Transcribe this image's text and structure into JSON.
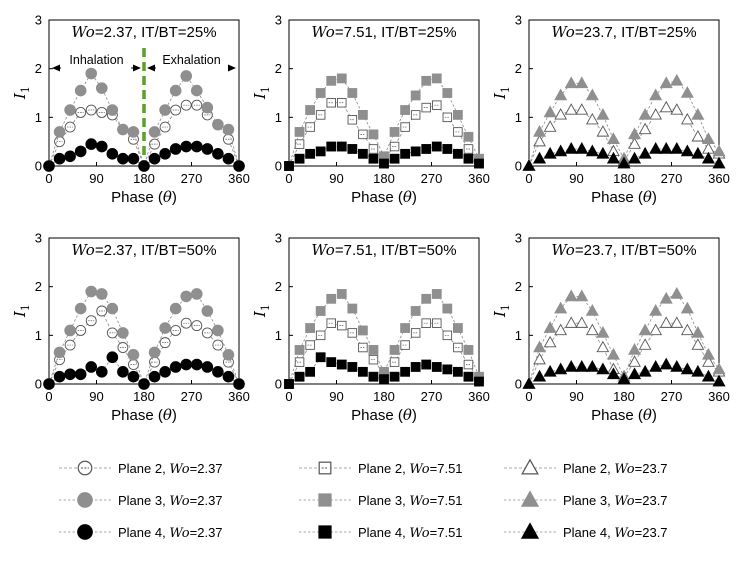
{
  "chart_data": {
    "type": "scatter",
    "xlabel": "Phase (θ)",
    "ylabel": "I1",
    "xticks": [
      0,
      90,
      180,
      270,
      360
    ],
    "yticks": [
      0,
      1,
      2,
      3
    ],
    "xlim": [
      0,
      360
    ],
    "ylim": [
      0,
      3
    ],
    "x": [
      0,
      20,
      40,
      60,
      80,
      100,
      120,
      140,
      160,
      180,
      200,
      220,
      240,
      260,
      280,
      300,
      320,
      340,
      360
    ],
    "panels": [
      {
        "title": "Wo=2.37, IT/BT=25%",
        "wo_label": "Wo",
        "rest_label": "=2.37, IT/BT=25%",
        "marker": "circle",
        "annotations": {
          "divider_x": 180,
          "inhalation": "Inhalation",
          "exhalation": "Exhalation"
        },
        "series": [
          {
            "name": "Plane 2, Wo=2.37",
            "values": [
              0,
              0.5,
              0.8,
              1.1,
              1.15,
              1.1,
              1.05,
              0.75,
              0.55,
              0,
              0.45,
              0.8,
              1.15,
              1.25,
              1.25,
              1.05,
              0.85,
              0.55,
              0
            ]
          },
          {
            "name": "Plane 3, Wo=2.37",
            "values": [
              0,
              0.7,
              1.15,
              1.55,
              1.9,
              1.6,
              1.15,
              0.75,
              0.7,
              0,
              0.7,
              1.15,
              1.55,
              1.85,
              1.55,
              1.2,
              0.85,
              0.75,
              0
            ]
          },
          {
            "name": "Plane 4, Wo=2.37",
            "values": [
              0,
              0.15,
              0.2,
              0.3,
              0.45,
              0.4,
              0.25,
              0.15,
              0.15,
              0,
              0.15,
              0.25,
              0.35,
              0.4,
              0.4,
              0.35,
              0.25,
              0.15,
              0
            ]
          }
        ]
      },
      {
        "title": "Wo=7.51, IT/BT=25%",
        "wo_label": "Wo",
        "rest_label": "=7.51, IT/BT=25%",
        "marker": "square",
        "series": [
          {
            "name": "Plane 2, Wo=7.51",
            "values": [
              0,
              0.45,
              0.8,
              1.05,
              1.3,
              1.3,
              0.95,
              0.65,
              0.35,
              0.15,
              0.4,
              0.8,
              1.05,
              1.2,
              1.25,
              1.0,
              0.7,
              0.35,
              0.1
            ]
          },
          {
            "name": "Plane 3, Wo=7.51",
            "values": [
              0,
              0.7,
              1.15,
              1.5,
              1.75,
              1.8,
              1.5,
              1.05,
              0.65,
              0.2,
              0.7,
              1.15,
              1.45,
              1.75,
              1.8,
              1.5,
              1.05,
              0.6,
              0.15
            ]
          },
          {
            "name": "Plane 4, Wo=7.51",
            "values": [
              0,
              0.15,
              0.25,
              0.3,
              0.4,
              0.4,
              0.35,
              0.25,
              0.15,
              0.05,
              0.15,
              0.25,
              0.3,
              0.35,
              0.4,
              0.35,
              0.25,
              0.15,
              0.05
            ]
          }
        ]
      },
      {
        "title": "Wo=23.7, IT/BT=25%",
        "wo_label": "Wo",
        "rest_label": "=23.7, IT/BT=25%",
        "marker": "triangle",
        "series": [
          {
            "name": "Plane 2, Wo=23.7",
            "values": [
              0,
              0.5,
              0.8,
              1.05,
              1.15,
              1.15,
              0.95,
              0.7,
              0.3,
              0.1,
              0.45,
              0.75,
              1.05,
              1.2,
              1.15,
              0.95,
              0.6,
              0.35,
              0.25
            ]
          },
          {
            "name": "Plane 3, Wo=23.7",
            "values": [
              0,
              0.7,
              1.1,
              1.45,
              1.7,
              1.7,
              1.45,
              1.05,
              0.55,
              0.15,
              0.65,
              1.05,
              1.45,
              1.7,
              1.75,
              1.5,
              1.05,
              0.55,
              0.3
            ]
          },
          {
            "name": "Plane 4, Wo=23.7",
            "values": [
              0,
              0.15,
              0.25,
              0.3,
              0.35,
              0.35,
              0.3,
              0.25,
              0.15,
              0.05,
              0.15,
              0.25,
              0.35,
              0.35,
              0.35,
              0.3,
              0.25,
              0.15,
              0.05
            ]
          }
        ]
      },
      {
        "title": "Wo=2.37, IT/BT=50%",
        "wo_label": "Wo",
        "rest_label": "=2.37, IT/BT=50%",
        "marker": "circle",
        "series": [
          {
            "name": "Plane 2, Wo=2.37",
            "values": [
              0,
              0.5,
              0.8,
              1.1,
              1.3,
              1.5,
              1.05,
              0.75,
              0.4,
              0,
              0.45,
              0.85,
              1.1,
              1.25,
              1.2,
              1.05,
              0.8,
              0.45,
              0
            ]
          },
          {
            "name": "Plane 3, Wo=2.37",
            "values": [
              0,
              0.65,
              1.1,
              1.55,
              1.9,
              1.85,
              1.55,
              1.05,
              0.6,
              0,
              0.65,
              1.15,
              1.55,
              1.8,
              1.85,
              1.5,
              1.1,
              0.6,
              0
            ]
          },
          {
            "name": "Plane 4, Wo=2.37",
            "values": [
              0,
              0.15,
              0.2,
              0.2,
              0.35,
              0.25,
              0.55,
              0.25,
              0.15,
              0,
              0.15,
              0.25,
              0.35,
              0.4,
              0.4,
              0.35,
              0.25,
              0.15,
              0
            ]
          }
        ]
      },
      {
        "title": "Wo=7.51, IT/BT=50%",
        "wo_label": "Wo",
        "rest_label": "=7.51, IT/BT=50%",
        "marker": "square",
        "series": [
          {
            "name": "Plane 2, Wo=7.51",
            "values": [
              0,
              0.45,
              0.8,
              1.0,
              1.25,
              1.2,
              1.05,
              0.75,
              0.5,
              0.2,
              0.45,
              0.8,
              1.05,
              1.25,
              1.25,
              1.0,
              0.75,
              0.4,
              0.1
            ]
          },
          {
            "name": "Plane 3, Wo=7.51",
            "values": [
              0,
              0.7,
              1.15,
              1.5,
              1.75,
              1.85,
              1.55,
              1.1,
              0.7,
              0.25,
              0.7,
              1.15,
              1.5,
              1.75,
              1.85,
              1.55,
              1.15,
              0.7,
              0.15
            ]
          },
          {
            "name": "Plane 4, Wo=7.51",
            "values": [
              0,
              0.15,
              0.25,
              0.55,
              0.45,
              0.4,
              0.35,
              0.25,
              0.15,
              0.1,
              0.15,
              0.25,
              0.35,
              0.4,
              0.35,
              0.3,
              0.25,
              0.15,
              0.05
            ]
          }
        ]
      },
      {
        "title": "Wo=23.7, IT/BT=50%",
        "wo_label": "Wo",
        "rest_label": "=23.7, IT/BT=50%",
        "marker": "triangle",
        "series": [
          {
            "name": "Plane 2, Wo=23.7",
            "values": [
              0,
              0.5,
              0.85,
              1.1,
              1.25,
              1.25,
              1.1,
              0.75,
              0.3,
              0.15,
              0.45,
              0.8,
              1.1,
              1.25,
              1.25,
              1.1,
              0.8,
              0.45,
              0.25
            ]
          },
          {
            "name": "Plane 3, Wo=23.7",
            "values": [
              0,
              0.75,
              1.15,
              1.55,
              1.8,
              1.8,
              1.5,
              1.05,
              0.6,
              0.15,
              0.7,
              1.1,
              1.5,
              1.75,
              1.85,
              1.55,
              1.05,
              0.6,
              0.3
            ]
          },
          {
            "name": "Plane 4, Wo=23.7",
            "values": [
              0,
              0.15,
              0.25,
              0.3,
              0.35,
              0.35,
              0.35,
              0.3,
              0.2,
              0.1,
              0.2,
              0.25,
              0.35,
              0.4,
              0.35,
              0.3,
              0.25,
              0.15,
              0.05
            ]
          }
        ]
      }
    ]
  },
  "legend": [
    [
      {
        "marker": "circle",
        "style": "open",
        "plane": "Plane 2, ",
        "wo": "Wo",
        "val": "=2.37"
      },
      {
        "marker": "circle",
        "style": "gray",
        "plane": "Plane 3, ",
        "wo": "Wo",
        "val": "=2.37"
      },
      {
        "marker": "circle",
        "style": "black",
        "plane": "Plane 4, ",
        "wo": "Wo",
        "val": "=2.37"
      }
    ],
    [
      {
        "marker": "square",
        "style": "open",
        "plane": "Plane 2, ",
        "wo": "Wo",
        "val": "=7.51"
      },
      {
        "marker": "square",
        "style": "gray",
        "plane": "Plane 3, ",
        "wo": "Wo",
        "val": "=7.51"
      },
      {
        "marker": "square",
        "style": "black",
        "plane": "Plane 4, ",
        "wo": "Wo",
        "val": "=7.51"
      }
    ],
    [
      {
        "marker": "triangle",
        "style": "open",
        "plane": "Plane 2, ",
        "wo": "Wo",
        "val": "=23.7"
      },
      {
        "marker": "triangle",
        "style": "gray",
        "plane": "Plane 3, ",
        "wo": "Wo",
        "val": "=23.7"
      },
      {
        "marker": "triangle",
        "style": "black",
        "plane": "Plane 4, ",
        "wo": "Wo",
        "val": "=23.7"
      }
    ]
  ],
  "colors": {
    "gray": "#8f8f8f",
    "black": "#000000",
    "open_stroke": "#555555",
    "divider": "#5aa02c",
    "line": "#8a8a8a"
  }
}
